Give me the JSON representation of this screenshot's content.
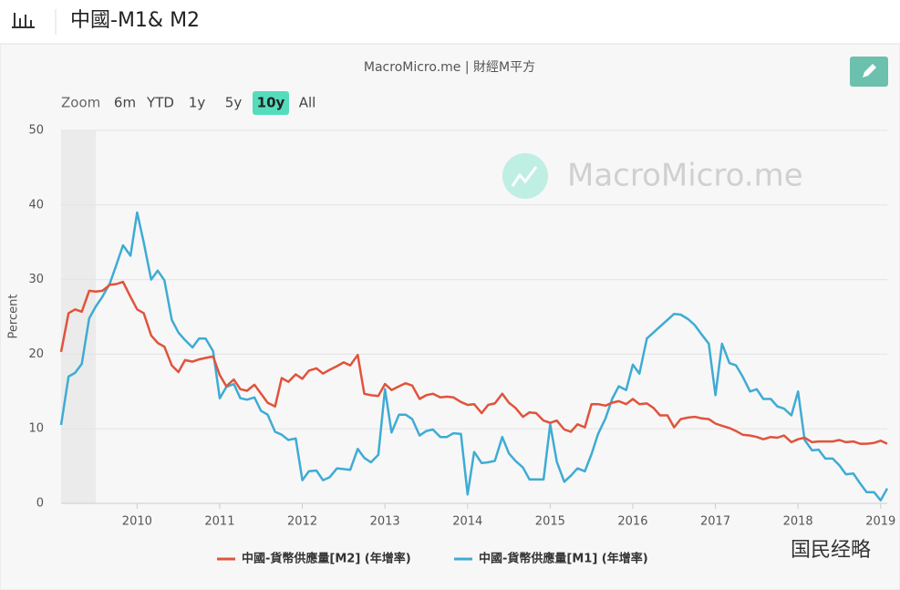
{
  "header": {
    "title": "中國-M1& M2"
  },
  "toolbar": {
    "label": "Zoom",
    "buttons": [
      "6m",
      "YTD",
      "1y",
      "5y",
      "10y",
      "All"
    ],
    "active": 4
  },
  "watermark": "MacroMicro.me",
  "corner_mark": "国民经略",
  "chart_data": {
    "type": "line",
    "subtitle": "MacroMicro.me | 財經M平方",
    "y_label": "Percent",
    "x": [
      2009.08,
      2009.17,
      2009.25,
      2009.33,
      2009.42,
      2009.5,
      2009.58,
      2009.67,
      2009.75,
      2009.83,
      2009.92,
      2010.0,
      2010.08,
      2010.17,
      2010.25,
      2010.33,
      2010.42,
      2010.5,
      2010.58,
      2010.67,
      2010.75,
      2010.83,
      2010.92,
      2011.0,
      2011.08,
      2011.17,
      2011.25,
      2011.33,
      2011.42,
      2011.5,
      2011.58,
      2011.67,
      2011.75,
      2011.83,
      2011.92,
      2012.0,
      2012.08,
      2012.17,
      2012.25,
      2012.33,
      2012.42,
      2012.5,
      2012.58,
      2012.67,
      2012.75,
      2012.83,
      2012.92,
      2013.0,
      2013.08,
      2013.17,
      2013.25,
      2013.33,
      2013.42,
      2013.5,
      2013.58,
      2013.67,
      2013.75,
      2013.83,
      2013.92,
      2014.0,
      2014.08,
      2014.17,
      2014.25,
      2014.33,
      2014.42,
      2014.5,
      2014.58,
      2014.67,
      2014.75,
      2014.83,
      2014.92,
      2015.0,
      2015.08,
      2015.17,
      2015.25,
      2015.33,
      2015.42,
      2015.5,
      2015.58,
      2015.67,
      2015.75,
      2015.83,
      2015.92,
      2016.0,
      2016.08,
      2016.17,
      2016.25,
      2016.33,
      2016.42,
      2016.5,
      2016.58,
      2016.67,
      2016.75,
      2016.83,
      2016.92,
      2017.0,
      2017.08,
      2017.17,
      2017.25,
      2017.33,
      2017.42,
      2017.5,
      2017.58,
      2017.67,
      2017.75,
      2017.83,
      2017.92,
      2018.0,
      2018.08,
      2018.17,
      2018.25,
      2018.33,
      2018.42,
      2018.5,
      2018.58,
      2018.67,
      2018.75,
      2018.83,
      2018.92,
      2019.0,
      2019.08
    ],
    "series": [
      {
        "name": "中國-貨幣供應量[M2] (年增率)",
        "color": "#e0533c",
        "values": [
          20.3,
          25.5,
          26.0,
          25.7,
          28.5,
          28.4,
          28.5,
          29.3,
          29.4,
          29.7,
          27.7,
          26.0,
          25.5,
          22.5,
          21.5,
          21.0,
          18.5,
          17.6,
          19.2,
          19.0,
          19.3,
          19.5,
          19.7,
          17.2,
          15.7,
          16.6,
          15.3,
          15.1,
          15.9,
          14.7,
          13.5,
          13.0,
          16.8,
          16.3,
          17.3,
          16.7,
          17.8,
          18.1,
          17.4,
          17.9,
          18.4,
          18.9,
          18.5,
          19.9,
          14.7,
          14.5,
          14.4,
          16.0,
          15.2,
          15.7,
          16.1,
          15.8,
          14.0,
          14.5,
          14.7,
          14.2,
          14.3,
          14.2,
          13.6,
          13.2,
          13.3,
          12.1,
          13.2,
          13.4,
          14.7,
          13.5,
          12.8,
          11.6,
          12.2,
          12.1,
          11.1,
          10.8,
          11.1,
          9.9,
          9.6,
          10.6,
          10.2,
          13.3,
          13.3,
          13.1,
          13.5,
          13.7,
          13.3,
          14.0,
          13.3,
          13.4,
          12.8,
          11.8,
          11.8,
          10.2,
          11.3,
          11.5,
          11.6,
          11.4,
          11.3,
          10.7,
          10.4,
          10.1,
          9.7,
          9.2,
          9.1,
          8.9,
          8.6,
          8.9,
          8.8,
          9.1,
          8.2,
          8.6,
          8.8,
          8.2,
          8.3,
          8.3,
          8.3,
          8.5,
          8.2,
          8.3,
          8.0,
          8.0,
          8.1,
          8.4,
          8.0
        ]
      },
      {
        "name": "中國-貨幣供應量[M1] (年增率)",
        "color": "#3fabd4",
        "values": [
          10.5,
          17.0,
          17.5,
          18.7,
          24.8,
          26.4,
          27.7,
          29.5,
          32.0,
          34.6,
          33.2,
          39.0,
          35.0,
          30.0,
          31.2,
          29.9,
          24.6,
          22.9,
          21.9,
          20.9,
          22.1,
          22.1,
          20.4,
          14.1,
          15.6,
          16.0,
          14.1,
          13.9,
          14.2,
          12.4,
          11.9,
          9.6,
          9.2,
          8.5,
          8.7,
          3.1,
          4.3,
          4.4,
          3.1,
          3.5,
          4.7,
          4.6,
          4.5,
          7.3,
          6.1,
          5.5,
          6.5,
          15.3,
          9.5,
          11.9,
          11.9,
          11.3,
          9.1,
          9.7,
          9.9,
          8.9,
          8.9,
          9.4,
          9.3,
          1.2,
          6.9,
          5.4,
          5.5,
          5.7,
          8.9,
          6.7,
          5.7,
          4.8,
          3.2,
          3.2,
          3.2,
          10.6,
          5.6,
          2.9,
          3.7,
          4.7,
          4.3,
          6.6,
          9.3,
          11.4,
          14.0,
          15.7,
          15.2,
          18.6,
          17.4,
          22.1,
          22.9,
          23.7,
          24.6,
          25.4,
          25.3,
          24.7,
          23.9,
          22.7,
          21.4,
          14.5,
          21.4,
          18.8,
          18.5,
          17.0,
          15.0,
          15.3,
          14.0,
          14.0,
          13.0,
          12.7,
          11.8,
          15.0,
          8.5,
          7.1,
          7.2,
          6.0,
          6.0,
          5.1,
          3.9,
          4.0,
          2.7,
          1.5,
          1.5,
          0.4,
          2.0
        ]
      }
    ],
    "xlim": [
      2009.08,
      2019.08
    ],
    "xticks": [
      2010,
      2011,
      2012,
      2013,
      2014,
      2015,
      2016,
      2017,
      2018,
      2019
    ],
    "ylim": [
      0,
      50
    ],
    "yticks": [
      0,
      10,
      20,
      30,
      40,
      50
    ],
    "grid": true,
    "shaded_ranges": [
      [
        2009.08,
        2009.5
      ]
    ]
  }
}
